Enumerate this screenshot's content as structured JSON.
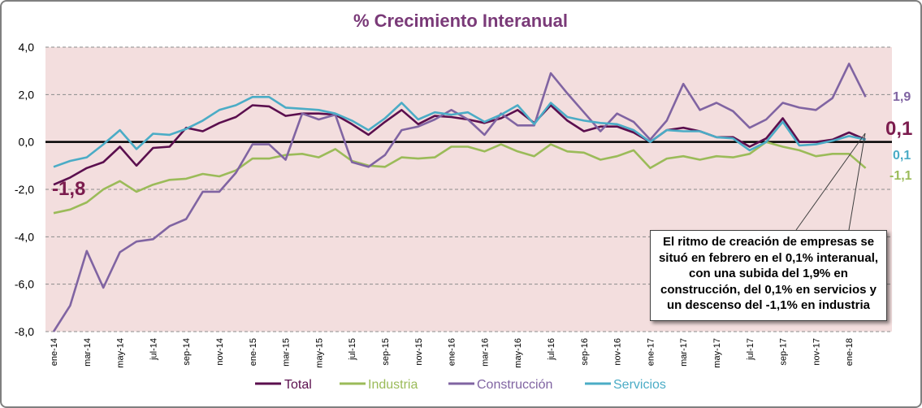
{
  "chart_data": {
    "type": "line",
    "title": "% Crecimiento Interanual",
    "ylim": [
      -8,
      4
    ],
    "yticks": [
      "4,0",
      "2,0",
      "0,0",
      "-2,0",
      "-4,0",
      "-6,0",
      "-8,0"
    ],
    "ytick_values": [
      4,
      2,
      0,
      -2,
      -4,
      -6,
      -8
    ],
    "xlabels": [
      "ene-14",
      "mar-14",
      "may-14",
      "jul-14",
      "sep-14",
      "nov-14",
      "ene-15",
      "mar-15",
      "may-15",
      "jul-15",
      "sep-15",
      "nov-15",
      "ene-16",
      "mar-16",
      "may-16",
      "jul-16",
      "sep-16",
      "nov-16",
      "ene-17",
      "mar-17",
      "may-17",
      "jul-17",
      "sep-17",
      "nov-17",
      "ene-18"
    ],
    "points": [
      "ene-14",
      "feb-14",
      "mar-14",
      "abr-14",
      "may-14",
      "jun-14",
      "jul-14",
      "ago-14",
      "sep-14",
      "oct-14",
      "nov-14",
      "dic-14",
      "ene-15",
      "feb-15",
      "mar-15",
      "abr-15",
      "may-15",
      "jun-15",
      "jul-15",
      "ago-15",
      "sep-15",
      "oct-15",
      "nov-15",
      "dic-15",
      "ene-16",
      "feb-16",
      "mar-16",
      "abr-16",
      "may-16",
      "jun-16",
      "jul-16",
      "ago-16",
      "sep-16",
      "oct-16",
      "nov-16",
      "dic-16",
      "ene-17",
      "feb-17",
      "mar-17",
      "abr-17",
      "may-17",
      "jun-17",
      "jul-17",
      "ago-17",
      "sep-17",
      "oct-17",
      "nov-17",
      "dic-17",
      "ene-18",
      "feb-18"
    ],
    "series": [
      {
        "name": "Total",
        "color": "#5b0f4e",
        "values": [
          -1.8,
          -1.5,
          -1.1,
          -0.85,
          -0.2,
          -1.0,
          -0.25,
          -0.2,
          0.6,
          0.45,
          0.8,
          1.05,
          1.55,
          1.5,
          1.1,
          1.2,
          1.2,
          1.15,
          0.75,
          0.3,
          0.85,
          1.35,
          0.75,
          1.1,
          1.05,
          0.95,
          0.8,
          1.0,
          1.35,
          0.8,
          1.55,
          0.9,
          0.45,
          0.65,
          0.65,
          0.4,
          0.0,
          0.5,
          0.6,
          0.45,
          0.2,
          0.2,
          -0.2,
          0.15,
          1.0,
          0.0,
          0.0,
          0.1,
          0.4,
          0.1
        ]
      },
      {
        "name": "Industria",
        "color": "#9bbb59",
        "values": [
          -3.0,
          -2.85,
          -2.55,
          -2.0,
          -1.65,
          -2.1,
          -1.8,
          -1.6,
          -1.55,
          -1.35,
          -1.45,
          -1.2,
          -0.7,
          -0.7,
          -0.55,
          -0.5,
          -0.65,
          -0.3,
          -0.8,
          -1.0,
          -1.05,
          -0.65,
          -0.7,
          -0.65,
          -0.2,
          -0.2,
          -0.4,
          -0.1,
          -0.4,
          -0.6,
          -0.1,
          -0.4,
          -0.45,
          -0.75,
          -0.6,
          -0.35,
          -1.1,
          -0.7,
          -0.6,
          -0.75,
          -0.6,
          -0.65,
          -0.5,
          0.0,
          -0.2,
          -0.35,
          -0.6,
          -0.5,
          -0.5,
          -1.1
        ]
      },
      {
        "name": "Construcción",
        "color": "#8064a2",
        "values": [
          -8.0,
          -6.9,
          -4.6,
          -6.15,
          -4.65,
          -4.2,
          -4.1,
          -3.55,
          -3.25,
          -2.1,
          -2.1,
          -1.3,
          -0.1,
          -0.1,
          -0.75,
          1.2,
          0.95,
          1.15,
          -0.85,
          -1.05,
          -0.55,
          0.5,
          0.65,
          0.95,
          1.35,
          0.95,
          0.3,
          1.2,
          0.7,
          0.7,
          2.9,
          2.05,
          1.25,
          0.45,
          1.2,
          0.85,
          0.1,
          0.9,
          2.45,
          1.35,
          1.65,
          1.3,
          0.6,
          0.95,
          1.65,
          1.45,
          1.35,
          1.85,
          3.3,
          1.9
        ]
      },
      {
        "name": "Servicios",
        "color": "#4bacc6",
        "values": [
          -1.05,
          -0.8,
          -0.65,
          -0.1,
          0.5,
          -0.3,
          0.35,
          0.3,
          0.55,
          0.9,
          1.35,
          1.55,
          1.9,
          1.9,
          1.45,
          1.4,
          1.35,
          1.2,
          0.9,
          0.5,
          1.0,
          1.65,
          0.95,
          1.25,
          1.15,
          1.25,
          0.85,
          1.15,
          1.55,
          0.75,
          1.65,
          1.05,
          0.9,
          0.8,
          0.75,
          0.5,
          0.0,
          0.5,
          0.45,
          0.45,
          0.2,
          0.15,
          -0.35,
          0.0,
          0.85,
          -0.15,
          -0.1,
          0.05,
          0.25,
          0.1
        ]
      }
    ],
    "end_labels": {
      "Total": "0,1",
      "Industria": "-1,1",
      "Construccion": "1,9",
      "Servicios": "0,1",
      "Total_start": "-1,8"
    },
    "legend": [
      "Total",
      "Industria",
      "Construcción",
      "Servicios"
    ],
    "annotation": "El ritmo de creación de empresas se situó en febrero en el 0,1% interanual, con una subida del 1,9% en construcción, del 0,1% en servicios y un descenso del -1,1% en industria"
  }
}
